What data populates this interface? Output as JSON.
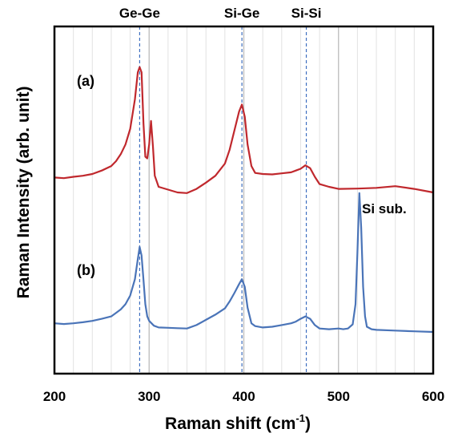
{
  "chart_data": {
    "type": "line",
    "xlabel": "Raman shift (cm",
    "xlabel_sup": "-1",
    "xlabel_close": ")",
    "ylabel": "Raman Intensity (arb. unit)",
    "xlim": [
      200,
      600
    ],
    "ylim": [
      0,
      1
    ],
    "x_ticks": [
      "200",
      "300",
      "400",
      "500",
      "600"
    ],
    "x_tick_values": [
      200,
      300,
      400,
      500,
      600
    ],
    "minor_grid_step": 20,
    "y_ticks_shown": false,
    "grid": true,
    "reference_lines": [
      {
        "label": "Ge-Ge",
        "x": 290
      },
      {
        "label": "Si-Ge",
        "x": 398
      },
      {
        "label": "Si-Si",
        "x": 466
      }
    ],
    "series": [
      {
        "name": "(a)",
        "color": "#c0282d",
        "x": [
          200,
          210,
          220,
          230,
          240,
          250,
          260,
          265,
          270,
          275,
          280,
          285,
          288,
          290,
          292,
          294,
          296,
          298,
          300,
          302,
          304,
          306,
          310,
          320,
          330,
          340,
          350,
          360,
          370,
          380,
          385,
          390,
          395,
          398,
          401,
          404,
          408,
          412,
          420,
          430,
          440,
          450,
          455,
          460,
          465,
          470,
          475,
          480,
          490,
          500,
          520,
          540,
          560,
          580,
          600
        ],
        "values": [
          0.565,
          0.563,
          0.567,
          0.57,
          0.575,
          0.585,
          0.598,
          0.612,
          0.632,
          0.66,
          0.705,
          0.79,
          0.868,
          0.883,
          0.868,
          0.72,
          0.625,
          0.62,
          0.66,
          0.728,
          0.655,
          0.57,
          0.538,
          0.53,
          0.522,
          0.52,
          0.532,
          0.55,
          0.57,
          0.605,
          0.645,
          0.7,
          0.755,
          0.775,
          0.74,
          0.66,
          0.598,
          0.578,
          0.575,
          0.574,
          0.577,
          0.58,
          0.585,
          0.59,
          0.6,
          0.592,
          0.567,
          0.546,
          0.538,
          0.532,
          0.533,
          0.535,
          0.54,
          0.532,
          0.522
        ]
      },
      {
        "name": "(b)",
        "color": "#4a74b8",
        "x": [
          200,
          210,
          220,
          230,
          240,
          250,
          260,
          265,
          270,
          275,
          280,
          285,
          288,
          290,
          292,
          294,
          296,
          298,
          300,
          305,
          310,
          320,
          330,
          340,
          350,
          360,
          370,
          380,
          385,
          390,
          395,
          398,
          401,
          404,
          408,
          412,
          420,
          430,
          440,
          450,
          455,
          460,
          465,
          470,
          475,
          480,
          490,
          500,
          505,
          510,
          515,
          518,
          520,
          522,
          524,
          526,
          528,
          530,
          535,
          540,
          560,
          580,
          600
        ],
        "values": [
          0.145,
          0.143,
          0.145,
          0.148,
          0.152,
          0.158,
          0.165,
          0.175,
          0.185,
          0.2,
          0.225,
          0.272,
          0.33,
          0.365,
          0.34,
          0.27,
          0.2,
          0.165,
          0.152,
          0.138,
          0.133,
          0.132,
          0.131,
          0.13,
          0.14,
          0.155,
          0.17,
          0.188,
          0.208,
          0.232,
          0.258,
          0.272,
          0.25,
          0.19,
          0.145,
          0.137,
          0.133,
          0.135,
          0.14,
          0.145,
          0.15,
          0.158,
          0.165,
          0.158,
          0.14,
          0.13,
          0.128,
          0.13,
          0.128,
          0.13,
          0.142,
          0.2,
          0.35,
          0.52,
          0.42,
          0.25,
          0.165,
          0.135,
          0.128,
          0.126,
          0.124,
          0.122,
          0.12
        ]
      }
    ],
    "annotations": [
      {
        "text": "Si sub.",
        "x": 540,
        "y": 0.52
      }
    ],
    "legend": "none"
  }
}
